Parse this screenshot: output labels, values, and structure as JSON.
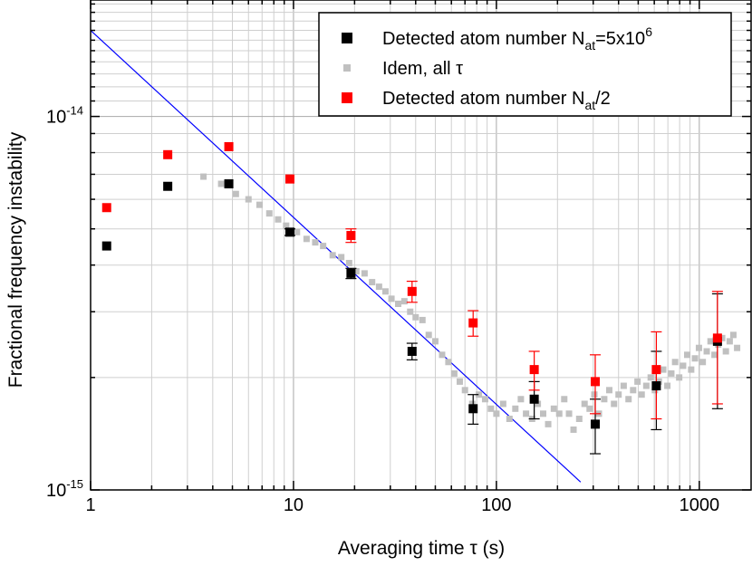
{
  "chart_data": {
    "type": "scatter",
    "xscale": "log",
    "yscale": "log",
    "xlim": [
      1,
      1800
    ],
    "ylim": [
      1e-15,
      2.05e-14
    ],
    "xlabel": "Averaging time τ (s)",
    "ylabel": "Fractional frequency instability",
    "grid": true,
    "legend_position": "top-right",
    "x_ticks": [
      {
        "value": 1,
        "label": "1"
      },
      {
        "value": 10,
        "label": "10"
      },
      {
        "value": 100,
        "label": "100"
      },
      {
        "value": 1000,
        "label": "1000"
      }
    ],
    "y_ticks": [
      {
        "value": 1e-15,
        "base": "10",
        "exp": "-15"
      },
      {
        "value": 1e-14,
        "base": "10",
        "exp": "-14"
      }
    ],
    "legend": [
      {
        "series": "black",
        "text": "Detected atom number N",
        "sub": "at",
        "mid": "=5x10",
        "sup": "6",
        "tail": ""
      },
      {
        "series": "grey",
        "text": "Idem, all τ",
        "sub": "",
        "mid": "",
        "sup": "",
        "tail": ""
      },
      {
        "series": "red",
        "text": "Detected atom number N",
        "sub": "at",
        "mid": "",
        "sup": "",
        "tail": "/2"
      }
    ],
    "series": [
      {
        "id": "black",
        "color": "#000000",
        "marker": "square",
        "points": [
          {
            "x": 1.2,
            "y": 4.5e-15,
            "err": 0
          },
          {
            "x": 2.4,
            "y": 6.5e-15,
            "err": 0
          },
          {
            "x": 4.8,
            "y": 6.6e-15,
            "err": 0
          },
          {
            "x": 9.6,
            "y": 4.9e-15,
            "err": 1e-16
          },
          {
            "x": 19.2,
            "y": 3.8e-15,
            "err": 1.2e-16
          },
          {
            "x": 38.4,
            "y": 2.35e-15,
            "err": 1.2e-16
          },
          {
            "x": 76.8,
            "y": 1.65e-15,
            "err": 1.5e-16
          },
          {
            "x": 153.6,
            "y": 1.75e-15,
            "err": 2e-16
          },
          {
            "x": 307,
            "y": 1.5e-15,
            "err": 2.5e-16
          },
          {
            "x": 614,
            "y": 1.9e-15,
            "err": 4.5e-16
          },
          {
            "x": 1229,
            "y": 2.5e-15,
            "err": 8.5e-16
          }
        ]
      },
      {
        "id": "red",
        "color": "#ff0000",
        "marker": "square",
        "points": [
          {
            "x": 1.2,
            "y": 5.7e-15,
            "err": 0
          },
          {
            "x": 2.4,
            "y": 7.9e-15,
            "err": 0
          },
          {
            "x": 4.8,
            "y": 8.3e-15,
            "err": 0
          },
          {
            "x": 9.6,
            "y": 6.8e-15,
            "err": 0
          },
          {
            "x": 19.2,
            "y": 4.8e-15,
            "err": 2e-16
          },
          {
            "x": 38.4,
            "y": 3.4e-15,
            "err": 2.2e-16
          },
          {
            "x": 76.8,
            "y": 2.8e-15,
            "err": 2.2e-16
          },
          {
            "x": 153.6,
            "y": 2.1e-15,
            "err": 2.5e-16
          },
          {
            "x": 307,
            "y": 1.95e-15,
            "err": 3.5e-16
          },
          {
            "x": 614,
            "y": 2.1e-15,
            "err": 5.5e-16
          },
          {
            "x": 1229,
            "y": 2.55e-15,
            "err": 8.5e-16
          }
        ]
      },
      {
        "id": "grey",
        "color": "#c0c0c0",
        "marker": "square",
        "points": [
          {
            "x": 3.6,
            "y": 6.9e-15
          },
          {
            "x": 4.4,
            "y": 6.6e-15
          },
          {
            "x": 5.2,
            "y": 6.2e-15
          },
          {
            "x": 6.0,
            "y": 6e-15
          },
          {
            "x": 6.8,
            "y": 5.8e-15
          },
          {
            "x": 7.6,
            "y": 5.5e-15
          },
          {
            "x": 8.4,
            "y": 5.3e-15
          },
          {
            "x": 9.2,
            "y": 5.1e-15
          },
          {
            "x": 10.4,
            "y": 4.9e-15
          },
          {
            "x": 11.6,
            "y": 4.7e-15
          },
          {
            "x": 12.8,
            "y": 4.6e-15
          },
          {
            "x": 14.0,
            "y": 4.5e-15
          },
          {
            "x": 15.6,
            "y": 4.25e-15
          },
          {
            "x": 17.2,
            "y": 4.2e-15
          },
          {
            "x": 18.8,
            "y": 4.05e-15
          },
          {
            "x": 20.4,
            "y": 3.85e-15
          },
          {
            "x": 22.4,
            "y": 3.8e-15
          },
          {
            "x": 24.4,
            "y": 3.6e-15
          },
          {
            "x": 26.4,
            "y": 3.5e-15
          },
          {
            "x": 28.4,
            "y": 3.4e-15
          },
          {
            "x": 30.4,
            "y": 3.25e-15
          },
          {
            "x": 32.8,
            "y": 3.15e-15
          },
          {
            "x": 35.2,
            "y": 3.2e-15
          },
          {
            "x": 37.6,
            "y": 3e-15
          },
          {
            "x": 40.0,
            "y": 2.9e-15
          },
          {
            "x": 43.2,
            "y": 2.85e-15
          },
          {
            "x": 46.4,
            "y": 2.6e-15
          },
          {
            "x": 50.0,
            "y": 2.5e-15
          },
          {
            "x": 54.0,
            "y": 2.3e-15
          },
          {
            "x": 58.0,
            "y": 2.2e-15
          },
          {
            "x": 62.0,
            "y": 2.05e-15
          },
          {
            "x": 66.0,
            "y": 1.95e-15
          },
          {
            "x": 70.0,
            "y": 1.85e-15
          },
          {
            "x": 76.0,
            "y": 1.7e-15
          },
          {
            "x": 82.0,
            "y": 1.8e-15
          },
          {
            "x": 88.0,
            "y": 1.75e-15
          },
          {
            "x": 94.0,
            "y": 1.65e-15
          },
          {
            "x": 100.0,
            "y": 1.6e-15
          },
          {
            "x": 108.0,
            "y": 1.7e-15
          },
          {
            "x": 116.0,
            "y": 1.55e-15
          },
          {
            "x": 124.0,
            "y": 1.65e-15
          },
          {
            "x": 132.0,
            "y": 1.75e-15
          },
          {
            "x": 140.0,
            "y": 1.6e-15
          },
          {
            "x": 150.0,
            "y": 1.55e-15
          },
          {
            "x": 160.0,
            "y": 1.7e-15
          },
          {
            "x": 170.0,
            "y": 1.6e-15
          },
          {
            "x": 180.0,
            "y": 1.5e-15
          },
          {
            "x": 192.0,
            "y": 1.65e-15
          },
          {
            "x": 204.0,
            "y": 1.6e-15
          },
          {
            "x": 216.0,
            "y": 1.75e-15
          },
          {
            "x": 228.0,
            "y": 1.6e-15
          },
          {
            "x": 240.0,
            "y": 1.45e-15
          },
          {
            "x": 256.0,
            "y": 1.55e-15
          },
          {
            "x": 272.0,
            "y": 1.7e-15
          },
          {
            "x": 288.0,
            "y": 1.65e-15
          },
          {
            "x": 304.0,
            "y": 1.8e-15
          },
          {
            "x": 320.0,
            "y": 1.6e-15
          },
          {
            "x": 340.0,
            "y": 1.75e-15
          },
          {
            "x": 360.0,
            "y": 1.85e-15
          },
          {
            "x": 380.0,
            "y": 1.7e-15
          },
          {
            "x": 400.0,
            "y": 1.8e-15
          },
          {
            "x": 424.0,
            "y": 1.9e-15
          },
          {
            "x": 448.0,
            "y": 1.75e-15
          },
          {
            "x": 472.0,
            "y": 1.85e-15
          },
          {
            "x": 496.0,
            "y": 1.95e-15
          },
          {
            "x": 520.0,
            "y": 1.8e-15
          },
          {
            "x": 548.0,
            "y": 1.9e-15
          },
          {
            "x": 576.0,
            "y": 2e-15
          },
          {
            "x": 604.0,
            "y": 1.85e-15
          },
          {
            "x": 632.0,
            "y": 1.95e-15
          },
          {
            "x": 664.0,
            "y": 2.1e-15
          },
          {
            "x": 696.0,
            "y": 1.9e-15
          },
          {
            "x": 728.0,
            "y": 2.05e-15
          },
          {
            "x": 760.0,
            "y": 2.2e-15
          },
          {
            "x": 796.0,
            "y": 2e-15
          },
          {
            "x": 832.0,
            "y": 2.15e-15
          },
          {
            "x": 872.0,
            "y": 2.3e-15
          },
          {
            "x": 912.0,
            "y": 2.1e-15
          },
          {
            "x": 952.0,
            "y": 2.25e-15
          },
          {
            "x": 996.0,
            "y": 2.4e-15
          },
          {
            "x": 1040.0,
            "y": 2.2e-15
          },
          {
            "x": 1088.0,
            "y": 2.35e-15
          },
          {
            "x": 1136.0,
            "y": 2.5e-15
          },
          {
            "x": 1188.0,
            "y": 2.3e-15
          },
          {
            "x": 1240.0,
            "y": 2.45e-15
          },
          {
            "x": 1296.0,
            "y": 2.55e-15
          },
          {
            "x": 1352.0,
            "y": 2.35e-15
          },
          {
            "x": 1412.0,
            "y": 2.5e-15
          },
          {
            "x": 1472.0,
            "y": 2.6e-15
          },
          {
            "x": 1536.0,
            "y": 2.4e-15
          }
        ]
      }
    ],
    "fit_line": {
      "color": "#0000ff",
      "x": [
        1,
        260
      ],
      "y": [
        1.7e-14,
        1.05e-15
      ]
    }
  }
}
